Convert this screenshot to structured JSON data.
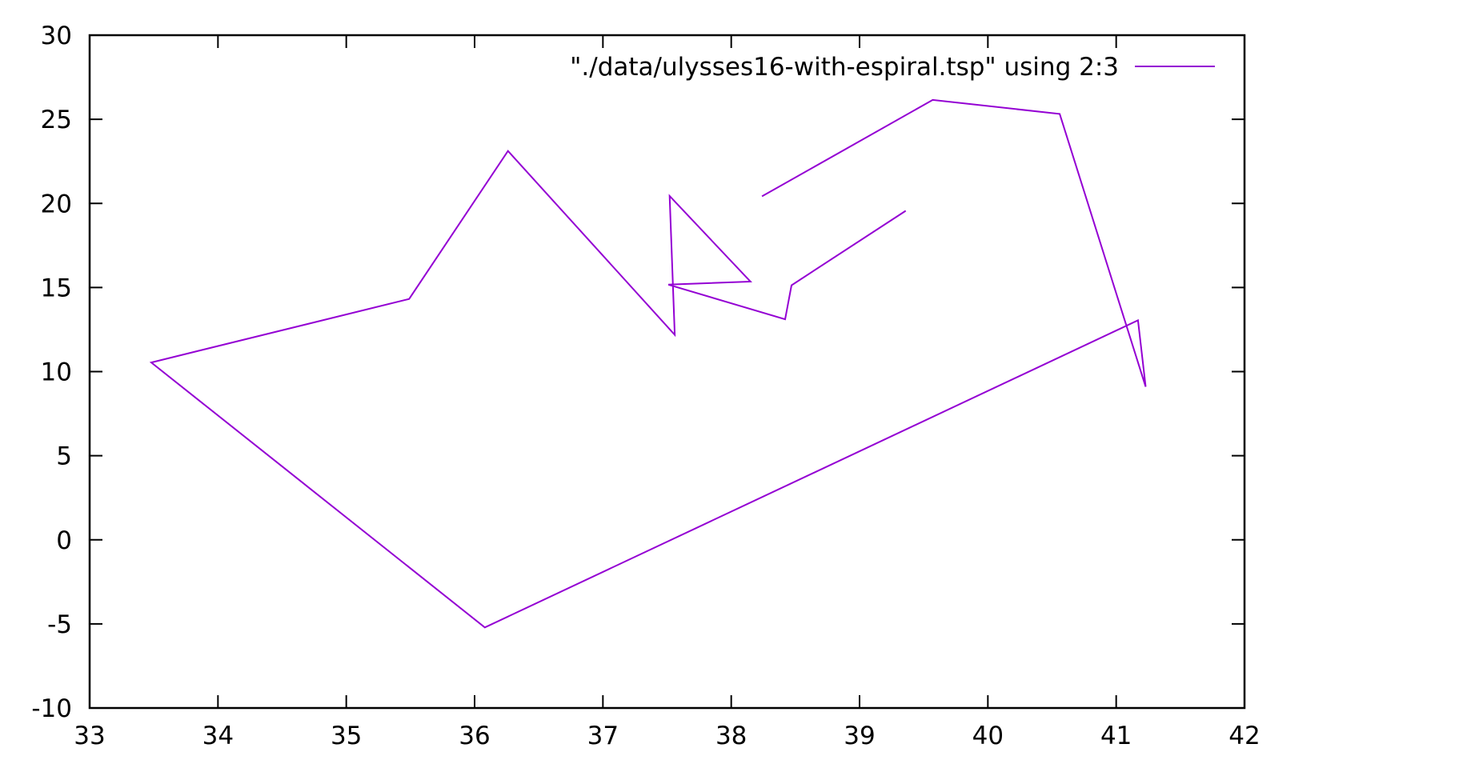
{
  "chart_data": {
    "type": "line",
    "title": "",
    "xlabel": "",
    "ylabel": "",
    "xlim": [
      33,
      42
    ],
    "ylim": [
      -10,
      30
    ],
    "x_ticks": [
      33,
      34,
      35,
      36,
      37,
      38,
      39,
      40,
      41,
      42
    ],
    "y_ticks": [
      -10,
      -5,
      0,
      5,
      10,
      15,
      20,
      25,
      30
    ],
    "grid": false,
    "legend_position": "top-right",
    "series": [
      {
        "name": "\"./data/ulysses16-with-espiral.tsp\" using 2:3",
        "color": "#9400d3",
        "points": [
          [
            38.24,
            20.42
          ],
          [
            39.57,
            26.15
          ],
          [
            40.56,
            25.32
          ],
          [
            41.23,
            9.1
          ],
          [
            41.17,
            13.05
          ],
          [
            36.08,
            -5.21
          ],
          [
            33.48,
            10.54
          ],
          [
            35.49,
            14.32
          ],
          [
            36.26,
            23.12
          ],
          [
            37.56,
            12.19
          ],
          [
            37.52,
            20.44
          ],
          [
            38.15,
            15.35
          ],
          [
            37.51,
            15.17
          ],
          [
            38.42,
            13.11
          ],
          [
            38.47,
            15.13
          ],
          [
            39.36,
            19.56
          ]
        ]
      }
    ]
  }
}
